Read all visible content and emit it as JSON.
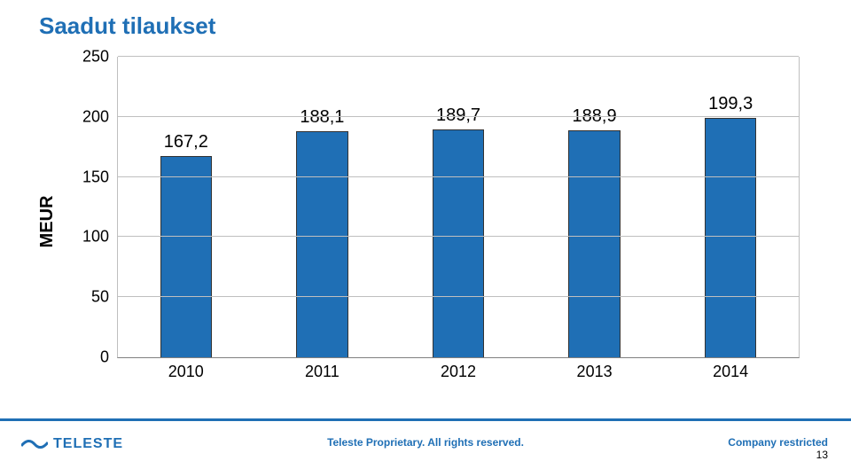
{
  "title": {
    "text": "Saadut tilaukset",
    "color": "#1f6fb5",
    "fontsize": 26
  },
  "chart": {
    "type": "bar",
    "ylabel": "MEUR",
    "ylabel_fontsize": 20,
    "ylabel_color": "#000000",
    "ylim": [
      0,
      250
    ],
    "ytick_step": 50,
    "yticks": [
      0,
      50,
      100,
      150,
      200,
      250
    ],
    "categories": [
      "2010",
      "2011",
      "2012",
      "2013",
      "2014"
    ],
    "values": [
      167.2,
      188.1,
      189.7,
      188.9,
      199.3
    ],
    "value_labels": [
      "167,2",
      "188,1",
      "189,7",
      "188,9",
      "199,3"
    ],
    "bar_color": "#1f6fb5",
    "bar_border_color": "#333333",
    "grid_color": "#bfbfbf",
    "axis_color": "#808080",
    "tick_fontsize": 18,
    "tick_color": "#000000",
    "data_label_fontsize": 20,
    "data_label_color": "#000000",
    "bar_width_ratio": 0.38,
    "plot_background": "#ffffff"
  },
  "footer": {
    "rule_color": "#1f6fb5",
    "logo_text": "TELESTE",
    "logo_color": "#1f6fb5",
    "center_text": "Teleste Proprietary. All rights reserved.",
    "right_text": "Company restricted",
    "text_color": "#1f6fb5",
    "fontsize": 12,
    "page_number": "13",
    "page_number_color": "#000000"
  }
}
